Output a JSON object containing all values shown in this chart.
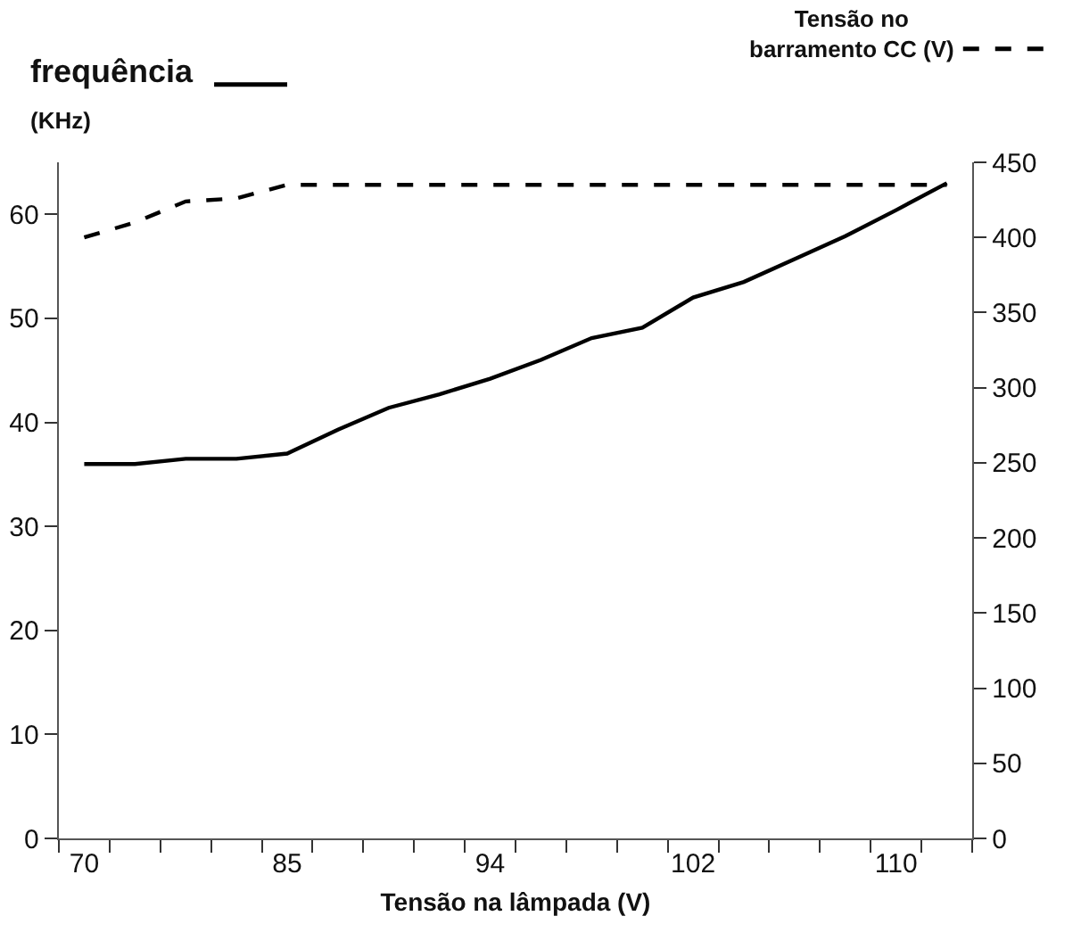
{
  "chart_data": {
    "type": "line",
    "xlabel": "Tensão na lâmpada (V)",
    "ylabel": "(KHz)",
    "categories": [
      "70",
      null,
      null,
      null,
      "85",
      null,
      null,
      null,
      "94",
      null,
      null,
      null,
      "102",
      null,
      null,
      null,
      "110",
      null
    ],
    "series": [
      {
        "name": "frequência",
        "color": "#000000",
        "line_style": "solid",
        "values": [
          36,
          36,
          36.5,
          36.5,
          37,
          39.3,
          41.4,
          42.7,
          44.2,
          46,
          48.1,
          49.1,
          52,
          53.5,
          55.7,
          57.9,
          60.4,
          63
        ]
      },
      {
        "name": "Tensão no barramento CC (V)",
        "color": "#000000",
        "line_style": "dashed",
        "axis": "y2",
        "values": [
          400,
          410,
          424,
          426,
          435,
          435,
          435,
          435,
          435,
          435,
          435,
          435,
          435,
          435,
          435,
          435,
          435,
          435
        ]
      }
    ],
    "ylim": [
      0,
      65
    ],
    "yticks": [
      0,
      10,
      20,
      30,
      40,
      50,
      60
    ],
    "y2lim": [
      0,
      450
    ],
    "y2ticks": [
      0,
      50,
      100,
      150,
      200,
      250,
      300,
      350,
      400,
      450
    ],
    "grid": false,
    "legend": "top",
    "marker": "none"
  }
}
